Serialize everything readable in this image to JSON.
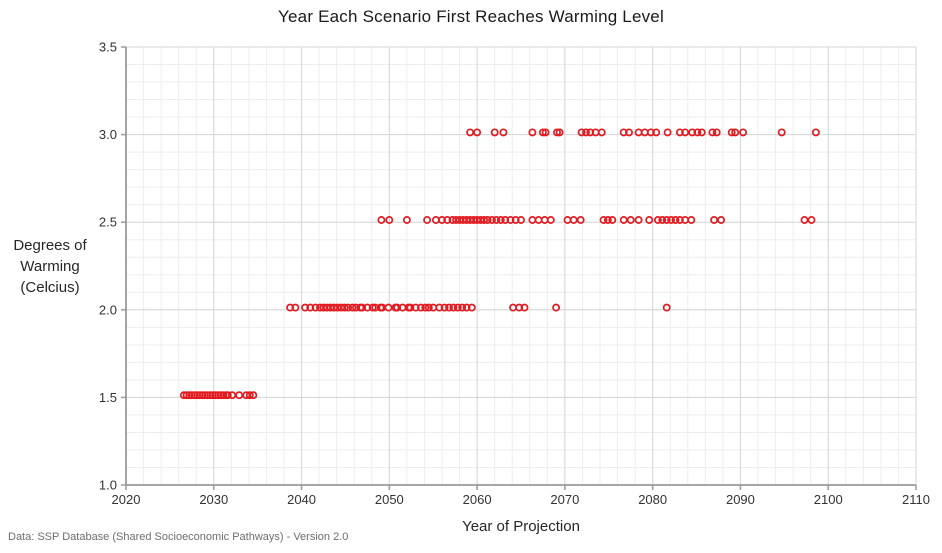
{
  "page": {
    "footer": "Data: SSP Database  (Shared  Socioeconomic Pathways) - Version 2.0"
  },
  "chart_data": {
    "type": "scatter",
    "title": "Year Each Scenario First Reaches Warming Level",
    "xlabel": "Year of Projection",
    "ylabel": "Degrees of\nWarming\n(Celcius)",
    "xlim": [
      2020,
      2110
    ],
    "ylim": [
      1.0,
      3.5
    ],
    "x_major_ticks": [
      2020,
      2030,
      2040,
      2050,
      2060,
      2070,
      2080,
      2090,
      2100,
      2110
    ],
    "y_major_ticks": [
      1.0,
      1.5,
      2.0,
      2.5,
      3.0,
      3.5
    ],
    "x_minor_step": 2,
    "y_minor_step": 0.1,
    "grid": true,
    "legend": "none",
    "marker": {
      "shape": "open-circle",
      "color": "#e21a20",
      "radius": 3.1
    },
    "colors": {
      "major_grid": "#d6d6d6",
      "minor_grid": "#ededed",
      "axis": "#9a9a9a"
    },
    "series": [
      {
        "name": "1.5 C",
        "level": 1.5,
        "years": [
          2026.6,
          2026.9,
          2027.2,
          2027.5,
          2027.8,
          2028.1,
          2028.4,
          2028.7,
          2029.0,
          2029.3,
          2029.6,
          2029.9,
          2030.2,
          2030.5,
          2030.8,
          2031.1,
          2031.4,
          2031.6,
          2032.1,
          2032.9,
          2033.7,
          2034.1,
          2034.5
        ]
      },
      {
        "name": "2.0 C",
        "level": 2.0,
        "years": [
          2038.7,
          2039.3,
          2040.4,
          2041.0,
          2041.6,
          2042.1,
          2042.5,
          2042.9,
          2043.3,
          2043.7,
          2044.1,
          2044.5,
          2044.9,
          2045.3,
          2045.8,
          2046.2,
          2046.7,
          2046.9,
          2047.5,
          2048.1,
          2048.4,
          2049.0,
          2049.2,
          2049.9,
          2050.7,
          2050.9,
          2051.5,
          2052.2,
          2052.4,
          2053.0,
          2053.6,
          2054.1,
          2054.5,
          2055.0,
          2055.7,
          2056.3,
          2056.8,
          2057.3,
          2057.8,
          2058.3,
          2058.8,
          2059.4,
          2064.1,
          2064.8,
          2065.4,
          2069.0,
          2081.6
        ]
      },
      {
        "name": "2.5 C",
        "level": 2.5,
        "years": [
          2049.1,
          2050.0,
          2052.0,
          2054.3,
          2055.3,
          2056.0,
          2056.6,
          2057.2,
          2057.6,
          2058.0,
          2058.4,
          2058.8,
          2059.2,
          2059.6,
          2060.0,
          2060.4,
          2060.8,
          2061.2,
          2061.7,
          2062.2,
          2062.7,
          2063.2,
          2063.8,
          2064.4,
          2065.0,
          2066.3,
          2067.0,
          2067.7,
          2068.4,
          2070.3,
          2071.0,
          2071.8,
          2074.4,
          2074.9,
          2075.4,
          2076.7,
          2077.5,
          2078.4,
          2079.6,
          2080.6,
          2081.1,
          2081.6,
          2082.1,
          2082.6,
          2083.1,
          2083.7,
          2084.4,
          2087.0,
          2087.8,
          2097.3,
          2098.1
        ]
      },
      {
        "name": "3.0 C",
        "level": 3.0,
        "years": [
          2059.2,
          2060.0,
          2062.0,
          2063.0,
          2066.3,
          2067.5,
          2067.8,
          2069.1,
          2069.4,
          2071.9,
          2072.4,
          2072.9,
          2073.5,
          2074.2,
          2076.7,
          2077.3,
          2078.4,
          2079.1,
          2079.8,
          2080.4,
          2081.7,
          2083.1,
          2083.7,
          2084.5,
          2085.1,
          2085.6,
          2086.8,
          2087.3,
          2089.0,
          2089.4,
          2090.3,
          2094.7,
          2098.6
        ]
      }
    ]
  }
}
